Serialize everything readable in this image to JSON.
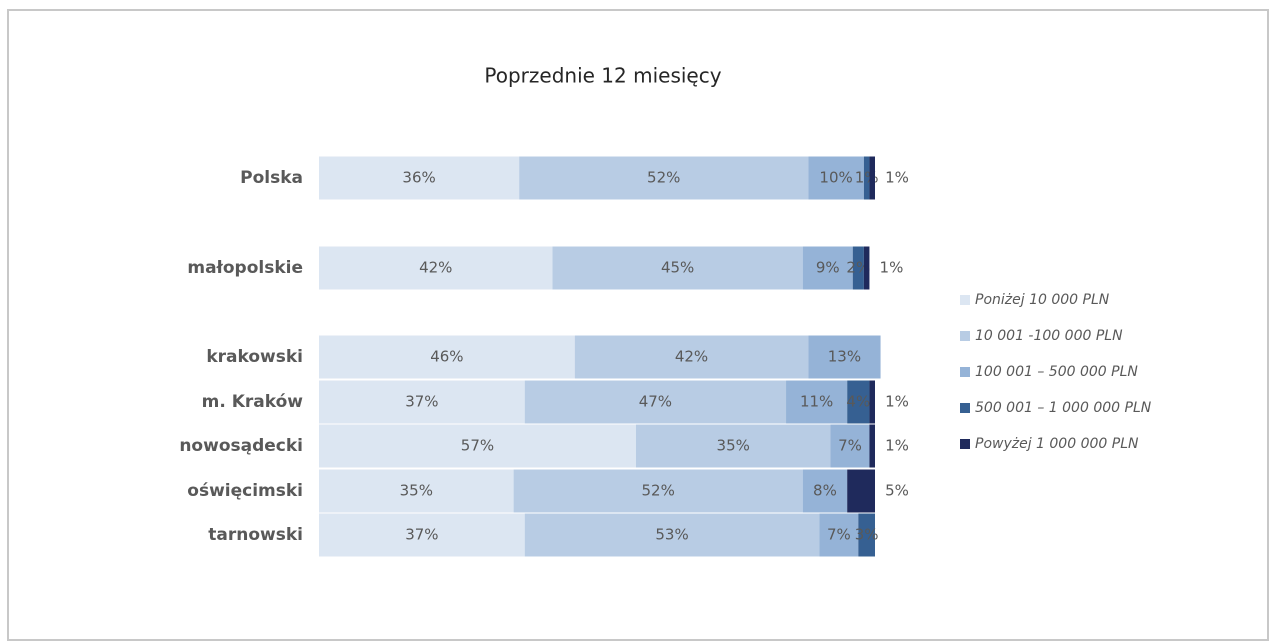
{
  "chart_data": {
    "type": "stacked_bar_horizontal",
    "title": "Poprzednie 12 miesięcy",
    "categories": [
      "Polska",
      "małopolskie",
      "krakowski",
      "m. Kraków",
      "nowosądecki",
      "oświęcimski",
      "tarnowski"
    ],
    "xlim": [
      0,
      100
    ],
    "legend": "right",
    "series": [
      {
        "name": "Poniżej 10 000 PLN",
        "color": "#dce6f2",
        "values": [
          36,
          42,
          46,
          37,
          57,
          35,
          37
        ],
        "value_labels": [
          "36%",
          "42%",
          "46%",
          "37%",
          "57%",
          "35%",
          "37%"
        ]
      },
      {
        "name": "10 001 -100 000 PLN",
        "color": "#b8cce4",
        "values": [
          52,
          45,
          42,
          47,
          35,
          52,
          53
        ],
        "value_labels": [
          "52%",
          "45%",
          "42%",
          "47%",
          "35%",
          "52%",
          "53%"
        ]
      },
      {
        "name": "100 001 – 500 000 PLN",
        "color": "#95b3d7",
        "values": [
          10,
          9,
          13,
          11,
          7,
          8,
          7
        ],
        "value_labels": [
          "10%",
          "9%",
          "13%",
          "11%",
          "7%",
          "8%",
          "7%"
        ]
      },
      {
        "name": "500 001 – 1 000 000 PLN",
        "color": "#366092",
        "values": [
          1,
          2,
          null,
          4,
          null,
          null,
          3
        ],
        "value_labels": [
          "1%",
          "2%",
          null,
          "4%",
          null,
          null,
          "3%"
        ]
      },
      {
        "name": "Powyżej 1 000 000 PLN",
        "color": "#1f2a5c",
        "values": [
          1,
          1,
          null,
          1,
          1,
          5,
          null
        ],
        "value_labels": [
          "1%",
          "1%",
          null,
          "1%",
          "1%",
          "5%",
          null
        ]
      }
    ]
  }
}
